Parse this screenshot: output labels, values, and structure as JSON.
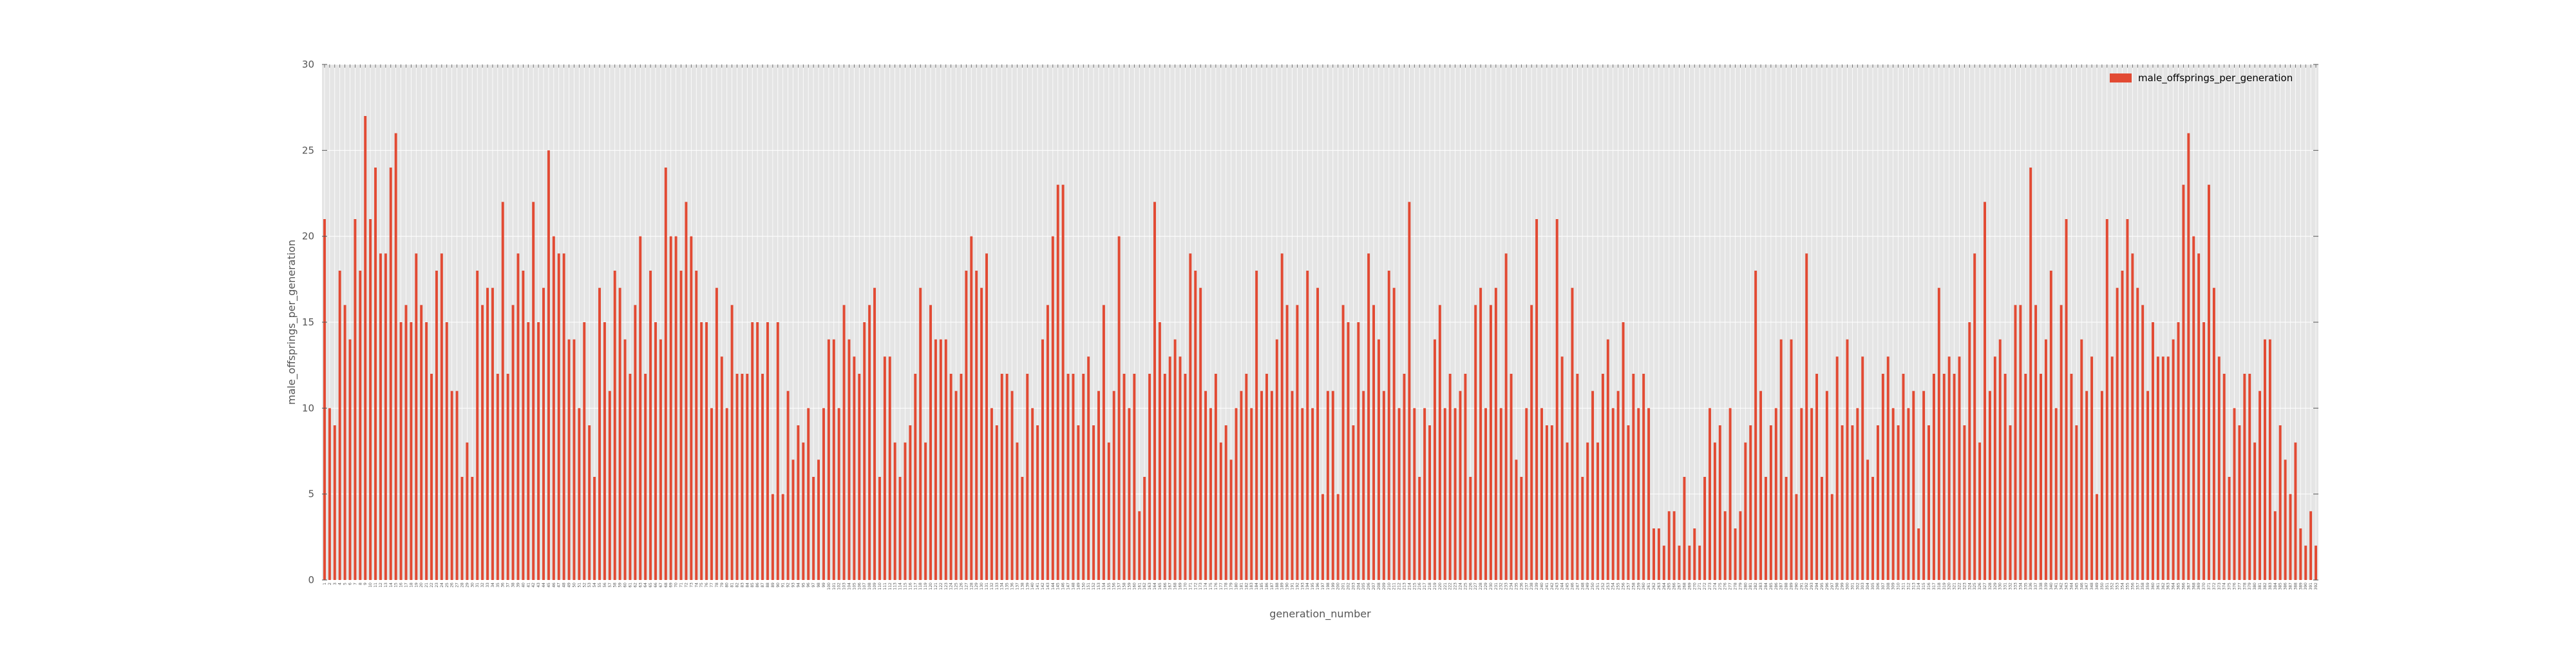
{
  "chart_data": {
    "type": "bar",
    "title": "",
    "xlabel": "generation_number",
    "ylabel": "male_offsprings_per_generation",
    "ylim": [
      0,
      30
    ],
    "yticks": [
      0,
      5,
      10,
      15,
      20,
      25,
      30
    ],
    "grid": true,
    "legend_position": "top-right",
    "colors": {
      "bar": "#E24A33",
      "plot_background": "#E5E5E5",
      "grid": "#FFFFFF",
      "axis_text": "#555555"
    },
    "series": [
      {
        "name": "male_offsprings_per_generation",
        "values": [
          21,
          10,
          9,
          18,
          16,
          14,
          21,
          18,
          27,
          21,
          24,
          19,
          19,
          24,
          26,
          15,
          16,
          15,
          19,
          16,
          15,
          12,
          18,
          19,
          15,
          11,
          11,
          6,
          8,
          6,
          18,
          16,
          17,
          17,
          12,
          22,
          12,
          16,
          19,
          18,
          15,
          22,
          15,
          17,
          25,
          20,
          19,
          19,
          14,
          14,
          10,
          15,
          9,
          6,
          17,
          15,
          11,
          18,
          17,
          14,
          12,
          16,
          20,
          12,
          18,
          15,
          14,
          24,
          20,
          20,
          18,
          22,
          20,
          18,
          15,
          15,
          10,
          17,
          13,
          10,
          16,
          12,
          12,
          12,
          15,
          15,
          12,
          15,
          5,
          15,
          5,
          11,
          7,
          9,
          8,
          10,
          6,
          7,
          10,
          14,
          14,
          10,
          16,
          14,
          13,
          12,
          15,
          16,
          17,
          6,
          13,
          13,
          8,
          6,
          8,
          9,
          12,
          17,
          8,
          16,
          14,
          14,
          14,
          12,
          11,
          12,
          18,
          20,
          18,
          17,
          19,
          10,
          9,
          12,
          12,
          11,
          8,
          6,
          12,
          10,
          9,
          14,
          16,
          20,
          23,
          23,
          12,
          12,
          9,
          12,
          13,
          9,
          11,
          16,
          8,
          11,
          20,
          12,
          10,
          12,
          4,
          6,
          12,
          22,
          15,
          12,
          13,
          14,
          13,
          12,
          19,
          18,
          17,
          11,
          10,
          12,
          8,
          9,
          7,
          10,
          11,
          12,
          10,
          18,
          11,
          12,
          11,
          14,
          19,
          16,
          11,
          16,
          10,
          18,
          10,
          17,
          5,
          11,
          11,
          5,
          16,
          15,
          9,
          15,
          11,
          19,
          16,
          14,
          11,
          18,
          17,
          10,
          12,
          22,
          10,
          6,
          10,
          9,
          14,
          16,
          10,
          12,
          10,
          11,
          12,
          6,
          16,
          17,
          10,
          16,
          17,
          10,
          19,
          12,
          7,
          6,
          10,
          16,
          21,
          10,
          9,
          9,
          21,
          13,
          8,
          17,
          12,
          6,
          8,
          11,
          8,
          12,
          14,
          10,
          11,
          15,
          9,
          12,
          10,
          12,
          10,
          3,
          3,
          2,
          4,
          4,
          2,
          6,
          2,
          3,
          2,
          6,
          10,
          8,
          9,
          4,
          10,
          3,
          4,
          8,
          9,
          18,
          11,
          6,
          9,
          10,
          14,
          6,
          14,
          5,
          10,
          19,
          10,
          12,
          6,
          11,
          5,
          13,
          9,
          14,
          9,
          10,
          13,
          7,
          6,
          9,
          12,
          13,
          10,
          9,
          12,
          10,
          11,
          3,
          11,
          9,
          12,
          17,
          12,
          13,
          12,
          13,
          9,
          15,
          19,
          8,
          22,
          11,
          13,
          14,
          12,
          9,
          16,
          16,
          12,
          24,
          16,
          12,
          14,
          18,
          10,
          16,
          21,
          12,
          9,
          14,
          11,
          13,
          5,
          11,
          21,
          13,
          17,
          18,
          21,
          19,
          17,
          16,
          11,
          15,
          13,
          13,
          13,
          14,
          15,
          23,
          26,
          20,
          19,
          15,
          23,
          17,
          13,
          12,
          6,
          10,
          9,
          12,
          12,
          8,
          11,
          14,
          14,
          4,
          9,
          7,
          5,
          8,
          3,
          2,
          4,
          2
        ]
      }
    ]
  }
}
